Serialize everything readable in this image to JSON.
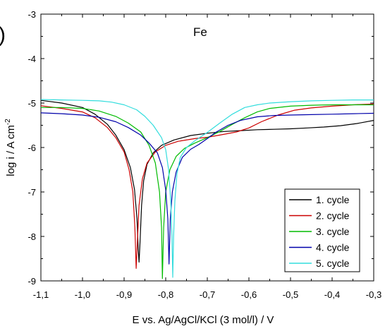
{
  "chart_data": {
    "type": "line",
    "annotation": "Fe",
    "panel_label_fragment": ")",
    "xlabel": "E vs. Ag/AgCl/KCl (3 mol/l) / V",
    "ylabel_main": "log i / A cm",
    "ylabel_sup": "-2",
    "xlim": [
      -1.1,
      -0.3
    ],
    "ylim": [
      -9,
      -3
    ],
    "x_ticks": [
      -1.1,
      -1.0,
      -0.9,
      -0.8,
      -0.7,
      -0.6,
      -0.5,
      -0.4,
      -0.3
    ],
    "x_tick_labels": [
      "-1,1",
      "-1,0",
      "-0,9",
      "-0,8",
      "-0,7",
      "-0,6",
      "-0,5",
      "-0,4",
      "-0,3"
    ],
    "y_ticks": [
      -3,
      -4,
      -5,
      -6,
      -7,
      -8,
      -9
    ],
    "y_tick_labels": [
      "-3",
      "-4",
      "-5",
      "-6",
      "-7",
      "-8",
      "-9"
    ],
    "grid": false,
    "legend_position": "bottom-right",
    "series": [
      {
        "name": "1. cycle",
        "color": "#000000",
        "points": [
          [
            -1.1,
            -4.94
          ],
          [
            -1.05,
            -5.0
          ],
          [
            -1.0,
            -5.1
          ],
          [
            -0.97,
            -5.25
          ],
          [
            -0.94,
            -5.48
          ],
          [
            -0.92,
            -5.72
          ],
          [
            -0.9,
            -6.05
          ],
          [
            -0.885,
            -6.45
          ],
          [
            -0.875,
            -6.95
          ],
          [
            -0.869,
            -7.6
          ],
          [
            -0.866,
            -8.3
          ],
          [
            -0.864,
            -8.58
          ],
          [
            -0.862,
            -8.2
          ],
          [
            -0.858,
            -7.3
          ],
          [
            -0.853,
            -6.75
          ],
          [
            -0.845,
            -6.38
          ],
          [
            -0.83,
            -6.12
          ],
          [
            -0.81,
            -5.95
          ],
          [
            -0.78,
            -5.83
          ],
          [
            -0.74,
            -5.73
          ],
          [
            -0.7,
            -5.68
          ],
          [
            -0.66,
            -5.64
          ],
          [
            -0.62,
            -5.62
          ],
          [
            -0.58,
            -5.6
          ],
          [
            -0.54,
            -5.59
          ],
          [
            -0.5,
            -5.58
          ],
          [
            -0.46,
            -5.56
          ],
          [
            -0.42,
            -5.54
          ],
          [
            -0.38,
            -5.51
          ],
          [
            -0.34,
            -5.46
          ],
          [
            -0.3,
            -5.39
          ]
        ]
      },
      {
        "name": "2. cycle",
        "color": "#cc0000",
        "points": [
          [
            -1.1,
            -5.06
          ],
          [
            -1.05,
            -5.12
          ],
          [
            -1.0,
            -5.2
          ],
          [
            -0.97,
            -5.33
          ],
          [
            -0.94,
            -5.55
          ],
          [
            -0.92,
            -5.78
          ],
          [
            -0.9,
            -6.1
          ],
          [
            -0.888,
            -6.5
          ],
          [
            -0.879,
            -7.0
          ],
          [
            -0.874,
            -7.8
          ],
          [
            -0.871,
            -8.72
          ],
          [
            -0.868,
            -8.1
          ],
          [
            -0.864,
            -7.3
          ],
          [
            -0.856,
            -6.7
          ],
          [
            -0.845,
            -6.35
          ],
          [
            -0.825,
            -6.1
          ],
          [
            -0.8,
            -5.95
          ],
          [
            -0.77,
            -5.86
          ],
          [
            -0.73,
            -5.8
          ],
          [
            -0.7,
            -5.77
          ],
          [
            -0.67,
            -5.72
          ],
          [
            -0.63,
            -5.65
          ],
          [
            -0.6,
            -5.56
          ],
          [
            -0.57,
            -5.42
          ],
          [
            -0.53,
            -5.27
          ],
          [
            -0.49,
            -5.16
          ],
          [
            -0.45,
            -5.11
          ],
          [
            -0.4,
            -5.07
          ],
          [
            -0.35,
            -5.04
          ],
          [
            -0.3,
            -5.02
          ]
        ]
      },
      {
        "name": "3. cycle",
        "color": "#00bb00",
        "points": [
          [
            -1.1,
            -5.1
          ],
          [
            -1.05,
            -5.1
          ],
          [
            -1.0,
            -5.12
          ],
          [
            -0.96,
            -5.18
          ],
          [
            -0.92,
            -5.3
          ],
          [
            -0.89,
            -5.45
          ],
          [
            -0.86,
            -5.65
          ],
          [
            -0.84,
            -5.95
          ],
          [
            -0.825,
            -6.35
          ],
          [
            -0.815,
            -7.0
          ],
          [
            -0.81,
            -7.8
          ],
          [
            -0.808,
            -8.95
          ],
          [
            -0.805,
            -7.8
          ],
          [
            -0.8,
            -7.0
          ],
          [
            -0.79,
            -6.5
          ],
          [
            -0.775,
            -6.2
          ],
          [
            -0.755,
            -6.02
          ],
          [
            -0.73,
            -5.9
          ],
          [
            -0.7,
            -5.78
          ],
          [
            -0.67,
            -5.64
          ],
          [
            -0.64,
            -5.48
          ],
          [
            -0.61,
            -5.33
          ],
          [
            -0.58,
            -5.2
          ],
          [
            -0.55,
            -5.12
          ],
          [
            -0.5,
            -5.07
          ],
          [
            -0.45,
            -5.05
          ],
          [
            -0.4,
            -5.04
          ],
          [
            -0.35,
            -5.04
          ],
          [
            -0.3,
            -5.04
          ]
        ]
      },
      {
        "name": "4. cycle",
        "color": "#0000aa",
        "points": [
          [
            -1.1,
            -5.22
          ],
          [
            -1.05,
            -5.24
          ],
          [
            -1.0,
            -5.27
          ],
          [
            -0.96,
            -5.32
          ],
          [
            -0.92,
            -5.42
          ],
          [
            -0.89,
            -5.55
          ],
          [
            -0.86,
            -5.72
          ],
          [
            -0.84,
            -5.9
          ],
          [
            -0.82,
            -6.12
          ],
          [
            -0.808,
            -6.45
          ],
          [
            -0.8,
            -6.95
          ],
          [
            -0.795,
            -7.6
          ],
          [
            -0.792,
            -8.62
          ],
          [
            -0.789,
            -7.6
          ],
          [
            -0.784,
            -7.0
          ],
          [
            -0.775,
            -6.55
          ],
          [
            -0.76,
            -6.22
          ],
          [
            -0.74,
            -6.04
          ],
          [
            -0.72,
            -5.93
          ],
          [
            -0.7,
            -5.8
          ],
          [
            -0.68,
            -5.66
          ],
          [
            -0.65,
            -5.5
          ],
          [
            -0.62,
            -5.39
          ],
          [
            -0.58,
            -5.31
          ],
          [
            -0.54,
            -5.28
          ],
          [
            -0.5,
            -5.27
          ],
          [
            -0.45,
            -5.26
          ],
          [
            -0.4,
            -5.25
          ],
          [
            -0.35,
            -5.24
          ],
          [
            -0.3,
            -5.23
          ]
        ]
      },
      {
        "name": "5. cycle",
        "color": "#33dddd",
        "points": [
          [
            -1.1,
            -4.92
          ],
          [
            -1.05,
            -4.93
          ],
          [
            -1.0,
            -4.94
          ],
          [
            -0.96,
            -4.95
          ],
          [
            -0.93,
            -4.98
          ],
          [
            -0.9,
            -5.04
          ],
          [
            -0.87,
            -5.15
          ],
          [
            -0.85,
            -5.3
          ],
          [
            -0.83,
            -5.5
          ],
          [
            -0.81,
            -5.78
          ],
          [
            -0.8,
            -6.05
          ],
          [
            -0.793,
            -6.5
          ],
          [
            -0.788,
            -7.2
          ],
          [
            -0.785,
            -8.0
          ],
          [
            -0.783,
            -8.92
          ],
          [
            -0.781,
            -8.0
          ],
          [
            -0.778,
            -7.2
          ],
          [
            -0.773,
            -6.6
          ],
          [
            -0.765,
            -6.22
          ],
          [
            -0.75,
            -6.0
          ],
          [
            -0.73,
            -5.85
          ],
          [
            -0.7,
            -5.66
          ],
          [
            -0.67,
            -5.45
          ],
          [
            -0.64,
            -5.25
          ],
          [
            -0.61,
            -5.1
          ],
          [
            -0.58,
            -5.04
          ],
          [
            -0.55,
            -5.0
          ],
          [
            -0.5,
            -4.97
          ],
          [
            -0.45,
            -4.95
          ],
          [
            -0.4,
            -4.94
          ],
          [
            -0.35,
            -4.93
          ],
          [
            -0.3,
            -4.93
          ]
        ]
      }
    ]
  }
}
